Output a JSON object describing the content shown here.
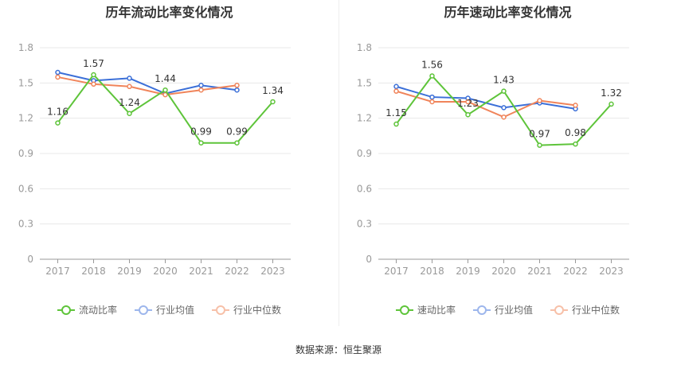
{
  "chart_data": [
    {
      "type": "line",
      "title": "历年流动比率变化情况",
      "categories": [
        "2017",
        "2018",
        "2019",
        "2020",
        "2021",
        "2022",
        "2023"
      ],
      "yticks": [
        "0",
        "0.3",
        "0.6",
        "0.9",
        "1.2",
        "1.5",
        "1.8"
      ],
      "ylim": [
        0,
        1.8
      ],
      "legend_position": "bottom",
      "series": [
        {
          "name": "流动比率",
          "color": "#5ec43a",
          "values": [
            1.16,
            1.57,
            1.24,
            1.44,
            0.99,
            0.99,
            1.34
          ],
          "labels": [
            "1.16",
            "1.57",
            "1.24",
            "1.44",
            "0.99",
            "0.99",
            "1.34"
          ]
        },
        {
          "name": "行业均值",
          "color": "#3b6fd8",
          "values": [
            1.59,
            1.52,
            1.54,
            1.41,
            1.48,
            1.44,
            null
          ]
        },
        {
          "name": "行业中位数",
          "color": "#f0845a",
          "values": [
            1.55,
            1.49,
            1.47,
            1.4,
            1.44,
            1.48,
            null
          ]
        }
      ]
    },
    {
      "type": "line",
      "title": "历年速动比率变化情况",
      "categories": [
        "2017",
        "2018",
        "2019",
        "2020",
        "2021",
        "2022",
        "2023"
      ],
      "yticks": [
        "0",
        "0.3",
        "0.6",
        "0.9",
        "1.2",
        "1.5",
        "1.8"
      ],
      "ylim": [
        0,
        1.8
      ],
      "legend_position": "bottom",
      "series": [
        {
          "name": "速动比率",
          "color": "#5ec43a",
          "values": [
            1.15,
            1.56,
            1.23,
            1.43,
            0.97,
            0.98,
            1.32
          ],
          "labels": [
            "1.15",
            "1.56",
            "1.23",
            "1.43",
            "0.97",
            "0.98",
            "1.32"
          ]
        },
        {
          "name": "行业均值",
          "color": "#3b6fd8",
          "values": [
            1.47,
            1.38,
            1.37,
            1.29,
            1.33,
            1.28,
            null
          ]
        },
        {
          "name": "行业中位数",
          "color": "#f0845a",
          "values": [
            1.43,
            1.34,
            1.34,
            1.21,
            1.35,
            1.31,
            null
          ]
        }
      ]
    }
  ],
  "footer": {
    "source": "数据来源：恒生聚源"
  }
}
